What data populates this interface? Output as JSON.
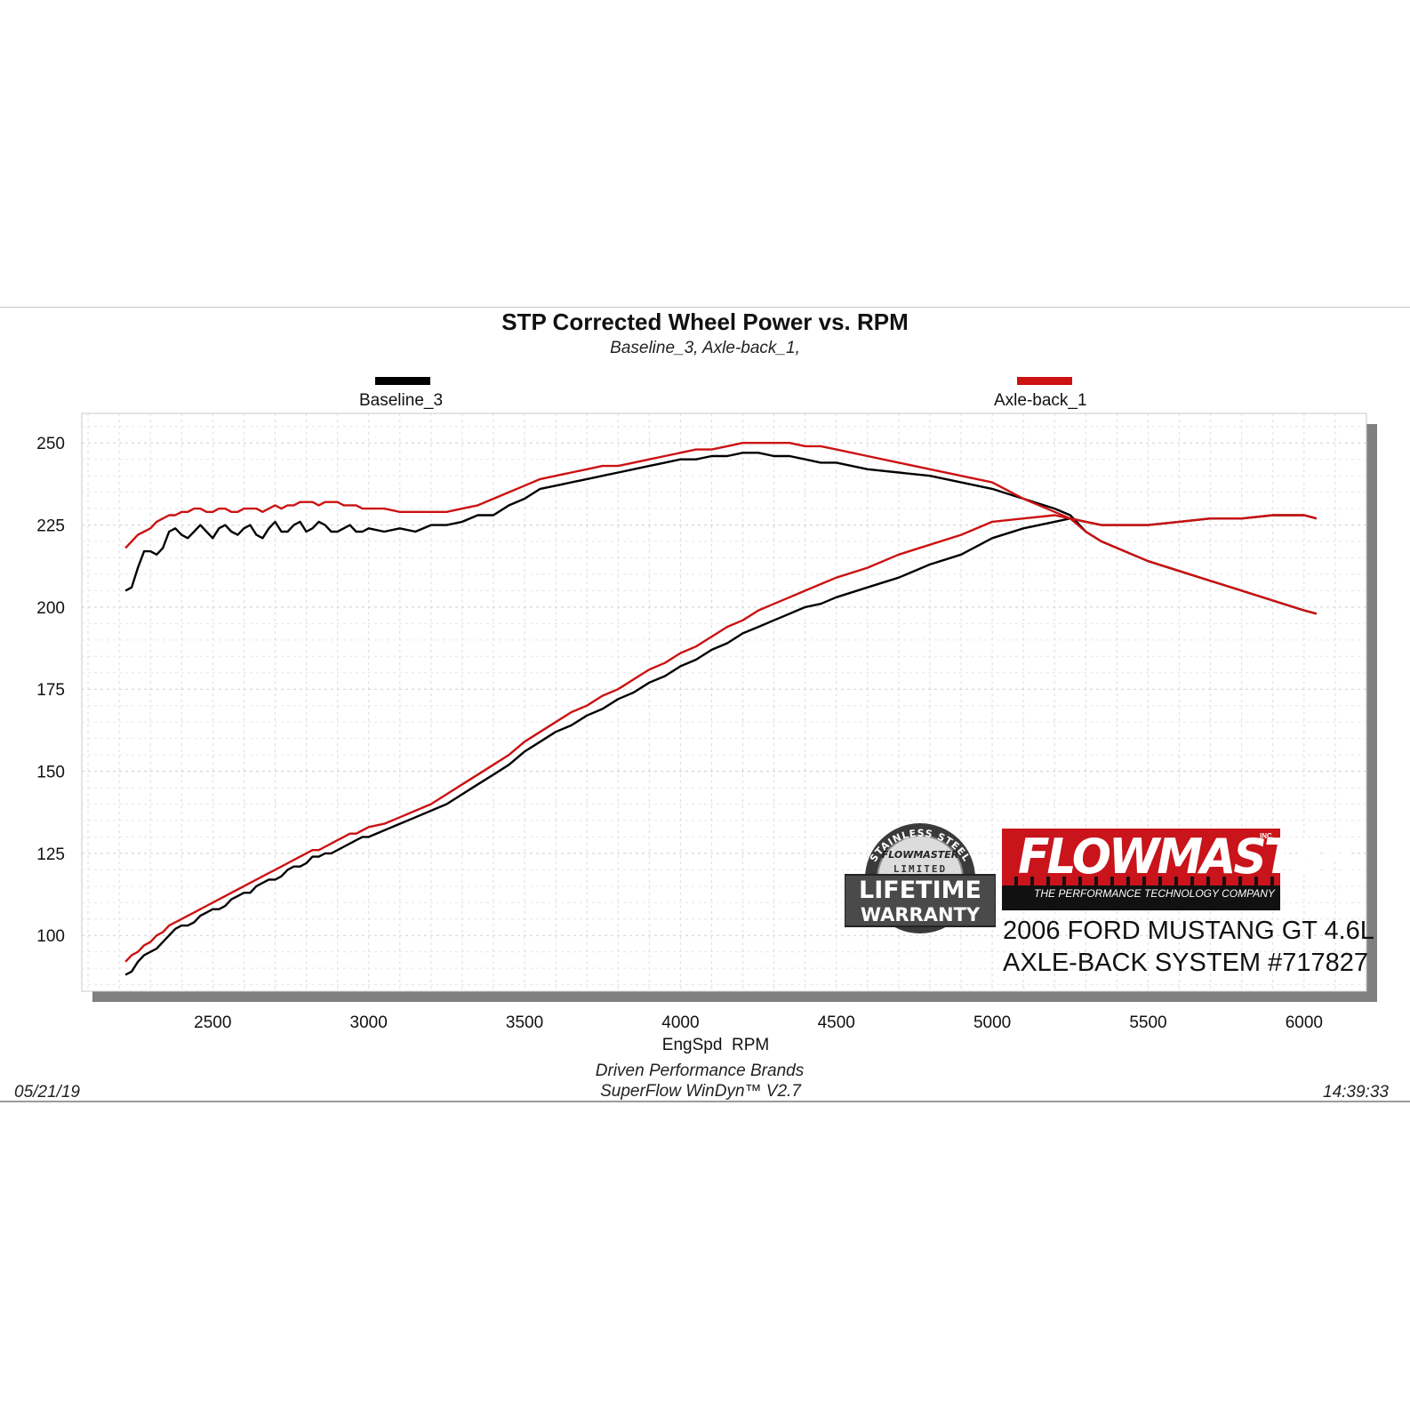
{
  "chart_data": {
    "type": "line",
    "title": "STP Corrected Wheel Power vs. RPM",
    "subtitle": "Baseline_3, Axle-back_1,",
    "xlabel": "EngSpd  RPM",
    "ylabel": "",
    "xlim": [
      2080,
      6200
    ],
    "ylim": [
      83,
      259
    ],
    "xticks": [
      2500,
      3000,
      3500,
      4000,
      4500,
      5000,
      5500,
      6000
    ],
    "yticks": [
      100,
      125,
      150,
      175,
      200,
      225,
      250
    ],
    "grid": true,
    "legend": "top",
    "series": [
      {
        "name": "Baseline_3",
        "color": "#000000",
        "curves": [
          {
            "x": [
              2220,
              2240,
              2260,
              2280,
              2300,
              2320,
              2340,
              2360,
              2380,
              2400,
              2420,
              2440,
              2460,
              2480,
              2500,
              2520,
              2540,
              2560,
              2580,
              2600,
              2620,
              2640,
              2660,
              2680,
              2700,
              2720,
              2740,
              2760,
              2780,
              2800,
              2820,
              2840,
              2860,
              2880,
              2900,
              2920,
              2940,
              2960,
              2980,
              3000,
              3050,
              3100,
              3150,
              3200,
              3250,
              3300,
              3350,
              3400,
              3450,
              3500,
              3550,
              3600,
              3650,
              3700,
              3750,
              3800,
              3850,
              3900,
              3950,
              4000,
              4050,
              4100,
              4150,
              4200,
              4250,
              4300,
              4350,
              4400,
              4450,
              4500,
              4600,
              4700,
              4800,
              4900,
              5000,
              5100,
              5200,
              5250,
              5300,
              5350,
              5400,
              5450,
              5500,
              5600,
              5700,
              5800,
              5900,
              6000,
              6040
            ],
            "y": [
              205,
              206,
              212,
              217,
              217,
              216,
              218,
              223,
              224,
              222,
              221,
              223,
              225,
              223,
              221,
              224,
              225,
              223,
              222,
              224,
              225,
              222,
              221,
              224,
              226,
              223,
              223,
              225,
              226,
              223,
              224,
              226,
              225,
              223,
              223,
              224,
              225,
              223,
              223,
              224,
              223,
              224,
              223,
              225,
              225,
              226,
              228,
              228,
              231,
              233,
              236,
              237,
              238,
              239,
              240,
              241,
              242,
              243,
              244,
              245,
              245,
              246,
              246,
              247,
              247,
              246,
              246,
              245,
              244,
              244,
              242,
              241,
              240,
              238,
              236,
              233,
              230,
              228,
              223,
              220,
              218,
              216,
              214,
              211,
              208,
              205,
              202,
              199,
              198
            ]
          },
          {
            "x": [
              2220,
              2240,
              2260,
              2280,
              2300,
              2320,
              2340,
              2360,
              2380,
              2400,
              2420,
              2440,
              2460,
              2480,
              2500,
              2520,
              2540,
              2560,
              2580,
              2600,
              2620,
              2640,
              2660,
              2680,
              2700,
              2720,
              2740,
              2760,
              2780,
              2800,
              2820,
              2840,
              2860,
              2880,
              2900,
              2920,
              2940,
              2960,
              2980,
              3000,
              3050,
              3100,
              3150,
              3200,
              3250,
              3300,
              3350,
              3400,
              3450,
              3500,
              3550,
              3600,
              3650,
              3700,
              3750,
              3800,
              3850,
              3900,
              3950,
              4000,
              4050,
              4100,
              4150,
              4200,
              4250,
              4300,
              4350,
              4400,
              4450,
              4500,
              4600,
              4700,
              4800,
              4900,
              5000,
              5100,
              5200,
              5250,
              5300,
              5350,
              5400,
              5450,
              5500,
              5600,
              5700,
              5800,
              5900,
              6000,
              6040
            ],
            "y": [
              88,
              89,
              92,
              94,
              95,
              96,
              98,
              100,
              102,
              103,
              103,
              104,
              106,
              107,
              108,
              108,
              109,
              111,
              112,
              113,
              113,
              115,
              116,
              117,
              117,
              118,
              120,
              121,
              121,
              122,
              124,
              124,
              125,
              125,
              126,
              127,
              128,
              129,
              130,
              130,
              132,
              134,
              136,
              138,
              140,
              143,
              146,
              149,
              152,
              156,
              159,
              162,
              164,
              167,
              169,
              172,
              174,
              177,
              179,
              182,
              184,
              187,
              189,
              192,
              194,
              196,
              198,
              200,
              201,
              203,
              206,
              209,
              213,
              216,
              221,
              224,
              226,
              227,
              226,
              225,
              225,
              225,
              225,
              226,
              227,
              227,
              228,
              228,
              227
            ]
          }
        ]
      },
      {
        "name": "Axle-back_1",
        "color": "#cc1111",
        "curves": [
          {
            "x": [
              2220,
              2240,
              2260,
              2280,
              2300,
              2320,
              2340,
              2360,
              2380,
              2400,
              2420,
              2440,
              2460,
              2480,
              2500,
              2520,
              2540,
              2560,
              2580,
              2600,
              2620,
              2640,
              2660,
              2680,
              2700,
              2720,
              2740,
              2760,
              2780,
              2800,
              2820,
              2840,
              2860,
              2880,
              2900,
              2920,
              2940,
              2960,
              2980,
              3000,
              3050,
              3100,
              3150,
              3200,
              3250,
              3300,
              3350,
              3400,
              3450,
              3500,
              3550,
              3600,
              3650,
              3700,
              3750,
              3800,
              3850,
              3900,
              3950,
              4000,
              4050,
              4100,
              4150,
              4200,
              4250,
              4300,
              4350,
              4400,
              4450,
              4500,
              4600,
              4700,
              4800,
              4900,
              5000,
              5100,
              5200,
              5250,
              5300,
              5350,
              5400,
              5450,
              5500,
              5600,
              5700,
              5800,
              5900,
              6000,
              6040
            ],
            "y": [
              218,
              220,
              222,
              223,
              224,
              226,
              227,
              228,
              228,
              229,
              229,
              230,
              230,
              229,
              229,
              230,
              230,
              229,
              229,
              230,
              230,
              230,
              229,
              230,
              231,
              230,
              231,
              231,
              232,
              232,
              232,
              231,
              232,
              232,
              232,
              231,
              231,
              231,
              230,
              230,
              230,
              229,
              229,
              229,
              229,
              230,
              231,
              233,
              235,
              237,
              239,
              240,
              241,
              242,
              243,
              243,
              244,
              245,
              246,
              247,
              248,
              248,
              249,
              250,
              250,
              250,
              250,
              249,
              249,
              248,
              246,
              244,
              242,
              240,
              238,
              233,
              229,
              227,
              223,
              220,
              218,
              216,
              214,
              211,
              208,
              205,
              202,
              199,
              198
            ]
          },
          {
            "x": [
              2220,
              2240,
              2260,
              2280,
              2300,
              2320,
              2340,
              2360,
              2380,
              2400,
              2420,
              2440,
              2460,
              2480,
              2500,
              2520,
              2540,
              2560,
              2580,
              2600,
              2620,
              2640,
              2660,
              2680,
              2700,
              2720,
              2740,
              2760,
              2780,
              2800,
              2820,
              2840,
              2860,
              2880,
              2900,
              2920,
              2940,
              2960,
              2980,
              3000,
              3050,
              3100,
              3150,
              3200,
              3250,
              3300,
              3350,
              3400,
              3450,
              3500,
              3550,
              3600,
              3650,
              3700,
              3750,
              3800,
              3850,
              3900,
              3950,
              4000,
              4050,
              4100,
              4150,
              4200,
              4250,
              4300,
              4350,
              4400,
              4450,
              4500,
              4600,
              4700,
              4800,
              4900,
              5000,
              5100,
              5200,
              5250,
              5300,
              5350,
              5400,
              5450,
              5500,
              5600,
              5700,
              5800,
              5900,
              6000,
              6040
            ],
            "y": [
              92,
              94,
              95,
              97,
              98,
              100,
              101,
              103,
              104,
              105,
              106,
              107,
              108,
              109,
              110,
              111,
              112,
              113,
              114,
              115,
              116,
              117,
              118,
              119,
              120,
              121,
              122,
              123,
              124,
              125,
              126,
              126,
              127,
              128,
              129,
              130,
              131,
              131,
              132,
              133,
              134,
              136,
              138,
              140,
              143,
              146,
              149,
              152,
              155,
              159,
              162,
              165,
              168,
              170,
              173,
              175,
              178,
              181,
              183,
              186,
              188,
              191,
              194,
              196,
              199,
              201,
              203,
              205,
              207,
              209,
              212,
              216,
              219,
              222,
              226,
              227,
              228,
              227,
              226,
              225,
              225,
              225,
              225,
              226,
              227,
              227,
              228,
              228,
              227
            ]
          }
        ]
      }
    ]
  },
  "legend": {
    "series1": "Baseline_3",
    "series2": "Axle-back_1"
  },
  "footer": {
    "date": "05/21/19",
    "time": "14:39:33",
    "line1": "Driven Performance Brands",
    "line2": "SuperFlow WinDyn™  V2.7"
  },
  "badge": {
    "top_arc": "STAINLESS STEEL",
    "brand": "FLOWMASTER",
    "limited": "LIMITED",
    "lifetime": "LIFETIME",
    "warranty": "WARRANTY"
  },
  "brand": {
    "name": "FLOWMASTER",
    "inc": "INC.",
    "tagline": "THE PERFORMANCE TECHNOLOGY COMPANY",
    "vehicle": "2006 FORD MUSTANG GT 4.6L",
    "product": "AXLE-BACK SYSTEM #717827"
  },
  "colors": {
    "baseline": "#000000",
    "axleback": "#cc1111",
    "brand_red": "#c8141a"
  }
}
